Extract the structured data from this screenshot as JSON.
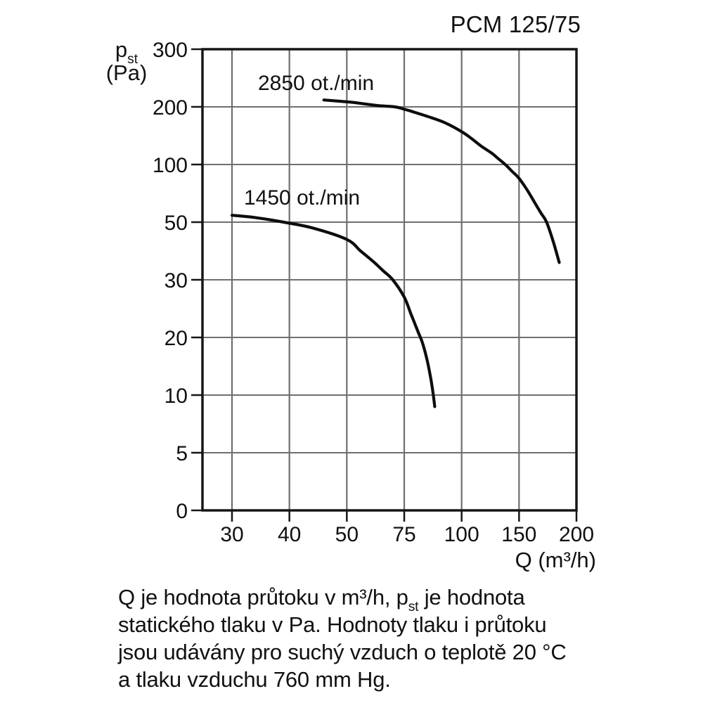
{
  "title": "PCM 125/75",
  "chart_data": {
    "type": "line",
    "title": "PCM 125/75",
    "xlabel": "Q (m³/h)",
    "ylabel": "pst (Pa)",
    "ylabel_parts": {
      "symbol": "p",
      "sub": "st",
      "unit": "(Pa)"
    },
    "x_ticks": [
      30,
      40,
      50,
      75,
      100,
      150,
      200
    ],
    "y_ticks": [
      300,
      200,
      100,
      50,
      30,
      20,
      10,
      5,
      0
    ],
    "axis_scale": "quasi-logarithmic: tick values evenly spaced on both axes",
    "grid": true,
    "legend_position": "labels next to curves",
    "series": [
      {
        "name": "2850 ot./min",
        "points_q_pa": [
          [
            46,
            212
          ],
          [
            52,
            208
          ],
          [
            58,
            205
          ],
          [
            64,
            202
          ],
          [
            71,
            200
          ],
          [
            75,
            196
          ],
          [
            80,
            190
          ],
          [
            87,
            181
          ],
          [
            93,
            172
          ],
          [
            100,
            157
          ],
          [
            108,
            146
          ],
          [
            117,
            132
          ],
          [
            126,
            120
          ],
          [
            132,
            110
          ],
          [
            138,
            100
          ],
          [
            144,
            94
          ],
          [
            150,
            88
          ],
          [
            157,
            78
          ],
          [
            163,
            68
          ],
          [
            169,
            58
          ],
          [
            174,
            50
          ],
          [
            180,
            43
          ],
          [
            185,
            36
          ]
        ]
      },
      {
        "name": "1450 ot./min",
        "points_q_pa": [
          [
            30,
            56
          ],
          [
            34,
            54
          ],
          [
            39,
            50
          ],
          [
            44,
            48
          ],
          [
            50,
            44
          ],
          [
            56,
            40
          ],
          [
            62,
            36
          ],
          [
            66,
            33
          ],
          [
            70,
            30
          ],
          [
            75,
            27
          ],
          [
            78,
            24
          ],
          [
            81,
            21
          ],
          [
            83,
            19
          ],
          [
            85,
            16
          ],
          [
            86.5,
            13
          ],
          [
            87.5,
            10.5
          ],
          [
            88.3,
            9
          ]
        ]
      }
    ]
  },
  "caption": {
    "line1_pre": "Q je hodnota průtoku v m³/h, p",
    "line1_sub": "st",
    "line1_post": " je hodnota",
    "line2": "statického tlaku v Pa. Hodnoty tlaku i průtoku",
    "line3": "jsou udávány pro suchý vzduch o teplotě 20 °C",
    "line4": "a tlaku vzduchu 760 mm Hg."
  },
  "colors": {
    "background": "#ffffff",
    "text": "#111111",
    "curve": "#0d0d0d",
    "grid": "#6f6f6f",
    "frame": "#161616"
  }
}
